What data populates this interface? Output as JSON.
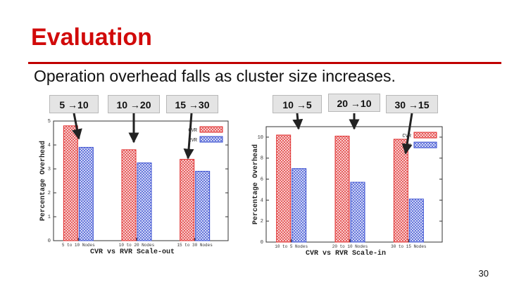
{
  "slide": {
    "title": "Evaluation",
    "subtitle": "Operation overhead falls as cluster size increases.",
    "page_number": "30",
    "accent_color": "#d10a0a"
  },
  "callouts": {
    "left": [
      "5 →10",
      "10 →20",
      "15 →30"
    ],
    "right": [
      "10 →5",
      "20 →10",
      "30 →15"
    ]
  },
  "chart_data": [
    {
      "type": "bar",
      "title": "CVR vs RVR Scale-out",
      "ylabel": "Percentage Overhead",
      "xlabel": "",
      "categories": [
        "5 to 10 Nodes",
        "10 to 20 Nodes",
        "15 to 30 Nodes"
      ],
      "series": [
        {
          "name": "CVR",
          "values": [
            4.8,
            3.8,
            3.4
          ],
          "color": "#e03030"
        },
        {
          "name": "RVR",
          "values": [
            3.9,
            3.25,
            2.9
          ],
          "color": "#3a4fd0"
        }
      ],
      "ylim": [
        0,
        5
      ],
      "yticks": [
        0,
        1,
        2,
        3,
        4,
        5
      ],
      "legend": "top-right",
      "grid": false
    },
    {
      "type": "bar",
      "title": "CVR vs RVR Scale-in",
      "ylabel": "Percentage Overhead",
      "xlabel": "",
      "categories": [
        "10 to 5 Nodes",
        "20 to 10 Nodes",
        "30 to 15 Nodes"
      ],
      "series": [
        {
          "name": "CVR",
          "values": [
            10.2,
            10.1,
            9.8
          ],
          "color": "#e03030"
        },
        {
          "name": "RVR",
          "values": [
            7.0,
            5.7,
            4.1
          ],
          "color": "#3a4fd0"
        }
      ],
      "ylim": [
        0,
        11
      ],
      "yticks": [
        0,
        2,
        4,
        6,
        8,
        10
      ],
      "legend": "top-right",
      "grid": false
    }
  ]
}
